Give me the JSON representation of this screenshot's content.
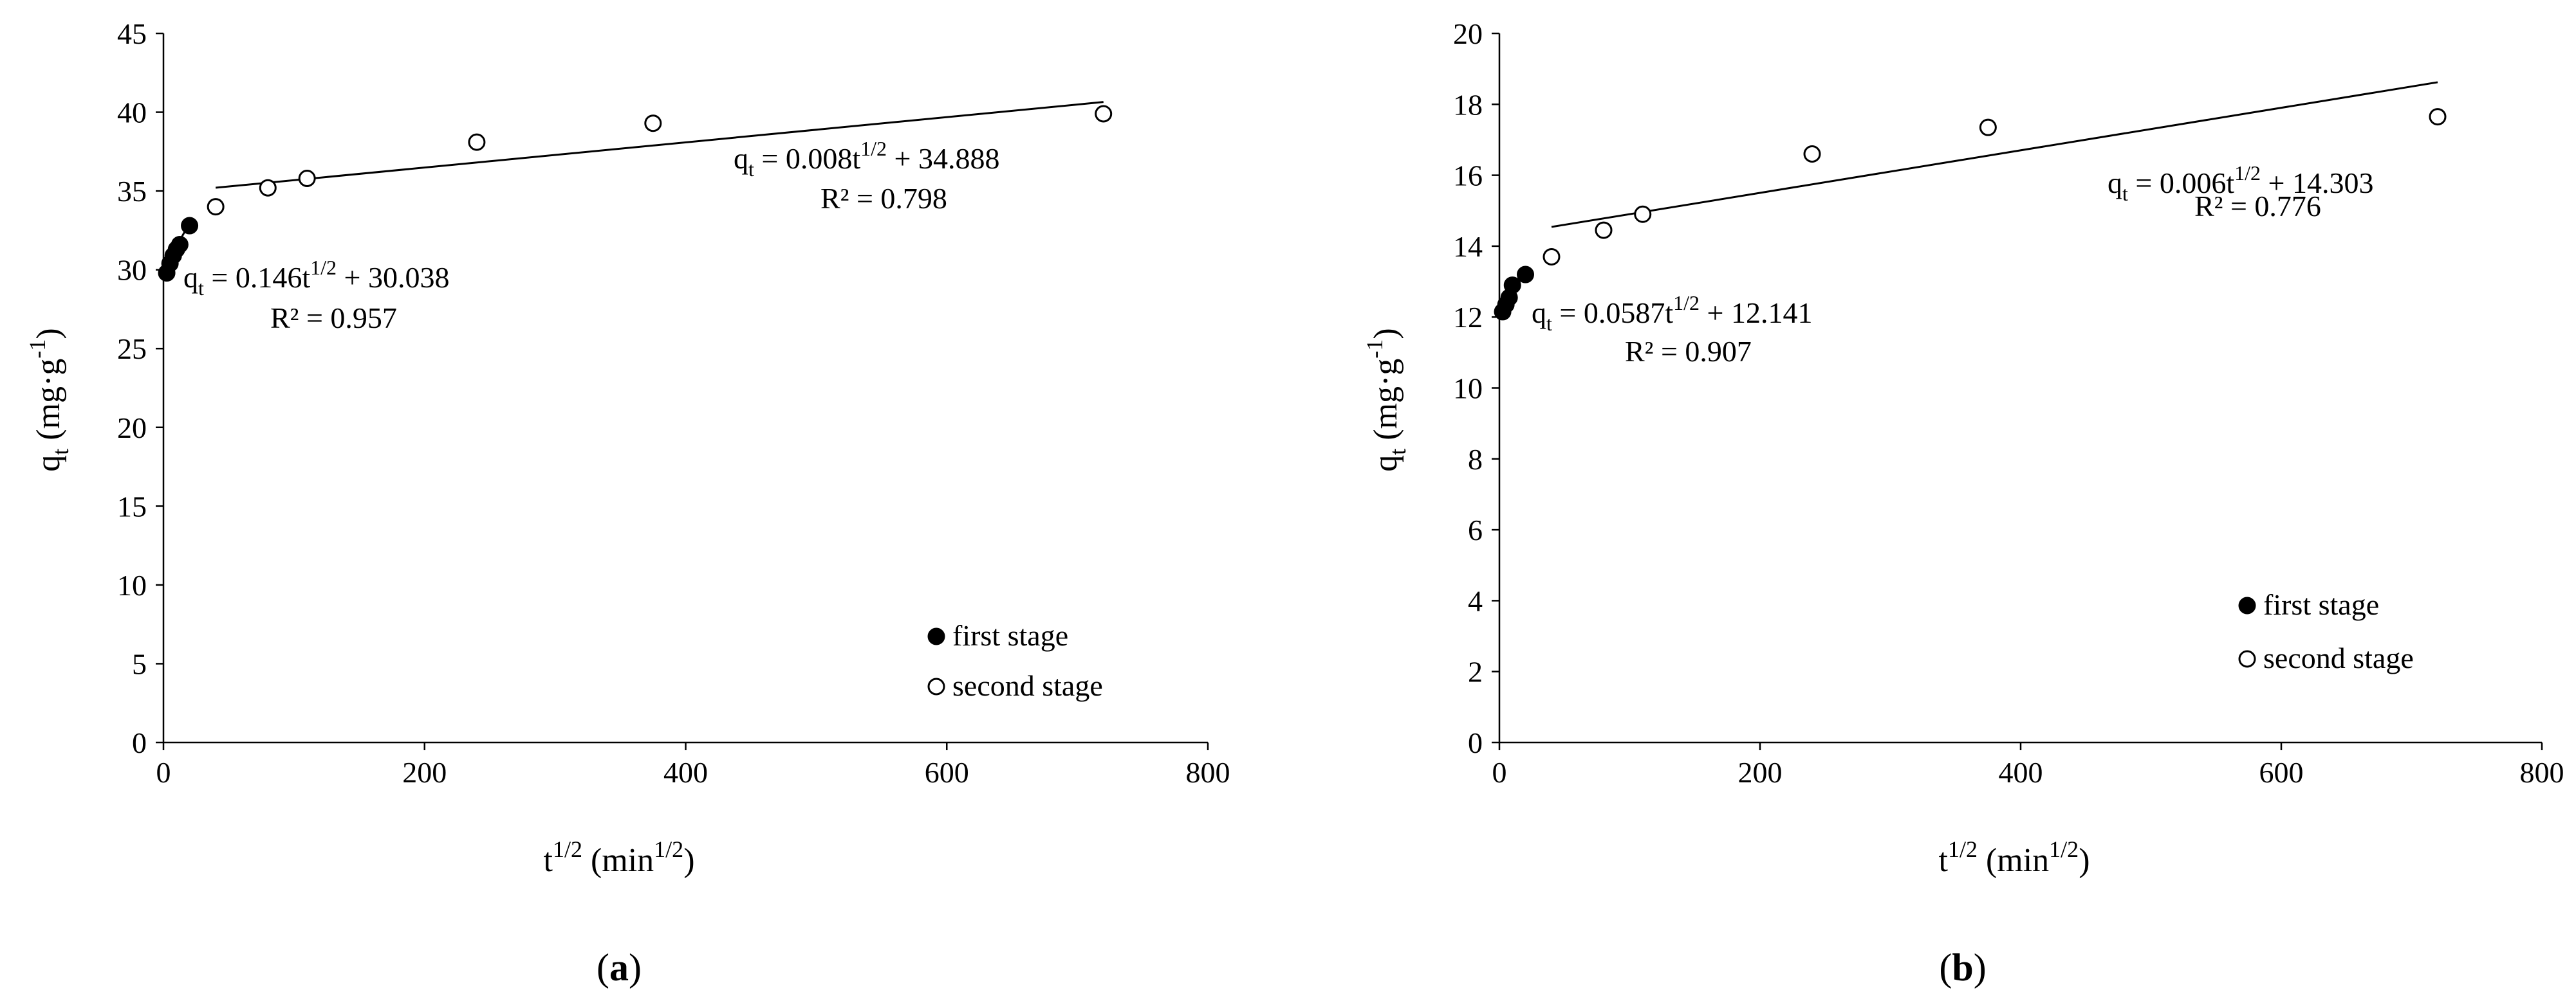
{
  "chart_data": [
    {
      "type": "scatter",
      "panel_label": "(a)",
      "panel_letter": "a",
      "xlabel": "t1/2 (min1/2)",
      "ylabel": "qt (mg·g-1)",
      "xlim": [
        0,
        800
      ],
      "ylim": [
        0,
        45
      ],
      "xticks": [
        "0",
        "200",
        "400",
        "600",
        "800"
      ],
      "yticks": [
        "0",
        "5",
        "10",
        "15",
        "20",
        "25",
        "30",
        "35",
        "40",
        "45"
      ],
      "grid": false,
      "legend_position": "bottom-right",
      "series": [
        {
          "name": "first stage",
          "marker": "filled-circle",
          "x": [
            2.5,
            5,
            7.5,
            10,
            12.5,
            20
          ],
          "y": [
            29.8,
            30.4,
            30.9,
            31.3,
            31.6,
            32.8
          ]
        },
        {
          "name": "second stage",
          "marker": "open-circle",
          "x": [
            40,
            80,
            110,
            240,
            375,
            720
          ],
          "y": [
            34.0,
            35.2,
            35.8,
            38.1,
            39.3,
            39.9
          ]
        }
      ],
      "fits": [
        {
          "series": "first stage",
          "slope": 0.146,
          "intercept": 30.038,
          "x_range": [
            0,
            20
          ],
          "equation": "qt = 0.146t1/2 + 30.038",
          "r2": "R² = 0.957"
        },
        {
          "series": "second stage",
          "slope": 0.008,
          "intercept": 34.888,
          "x_range": [
            40,
            720
          ],
          "equation": "qt = 0.008t1/2 + 34.888",
          "r2": "R² = 0.798"
        }
      ],
      "eq_first": {
        "prefix": "= 0.146t",
        "suffix": " + 30.038",
        "r2": "R² = 0.957"
      },
      "eq_second": {
        "prefix": "= 0.008t",
        "suffix": " + 34.888",
        "r2": "R² = 0.798"
      }
    },
    {
      "type": "scatter",
      "panel_label": "(b)",
      "panel_letter": "b",
      "xlabel": "t1/2 (min1/2)",
      "ylabel": "qt (mg·g-1)",
      "xlim": [
        0,
        800
      ],
      "ylim": [
        0,
        20
      ],
      "xticks": [
        "0",
        "200",
        "400",
        "600",
        "800"
      ],
      "yticks": [
        "0",
        "2",
        "4",
        "6",
        "8",
        "10",
        "12",
        "14",
        "16",
        "18",
        "20"
      ],
      "grid": false,
      "legend_position": "bottom-right",
      "series": [
        {
          "name": "first stage",
          "marker": "filled-circle",
          "x": [
            2.5,
            5,
            7.5,
            10,
            20
          ],
          "y": [
            12.15,
            12.35,
            12.55,
            12.9,
            13.2
          ]
        },
        {
          "name": "second stage",
          "marker": "open-circle",
          "x": [
            40,
            80,
            110,
            240,
            375,
            720
          ],
          "y": [
            13.7,
            14.45,
            14.9,
            16.6,
            17.35,
            17.65
          ]
        }
      ],
      "fits": [
        {
          "series": "first stage",
          "slope": 0.0587,
          "intercept": 12.141,
          "x_range": [
            0,
            20
          ],
          "equation": "qt = 0.0587t1/2 + 12.141",
          "r2": "R² = 0.907"
        },
        {
          "series": "second stage",
          "slope": 0.006,
          "intercept": 14.303,
          "x_range": [
            40,
            720
          ],
          "equation": "qt = 0.006t1/2 + 14.303",
          "r2": "R² = 0.776"
        }
      ],
      "eq_first": {
        "prefix": "= 0.0587t",
        "suffix": " + 12.141",
        "r2": "R² = 0.907"
      },
      "eq_second": {
        "prefix": "= 0.006t",
        "suffix": " + 14.303",
        "r2": "R² = 0.776"
      }
    }
  ],
  "labels": {
    "q": "q",
    "t_sub": "t",
    "t": "t",
    "half_exp": "1/2",
    "x_unit_open": " (min",
    "x_unit_close": ")",
    "y_unit_open": " (mg·g",
    "y_unit_exp": "-1",
    "y_unit_close": ")",
    "paren_open": "(",
    "paren_close": ")"
  }
}
